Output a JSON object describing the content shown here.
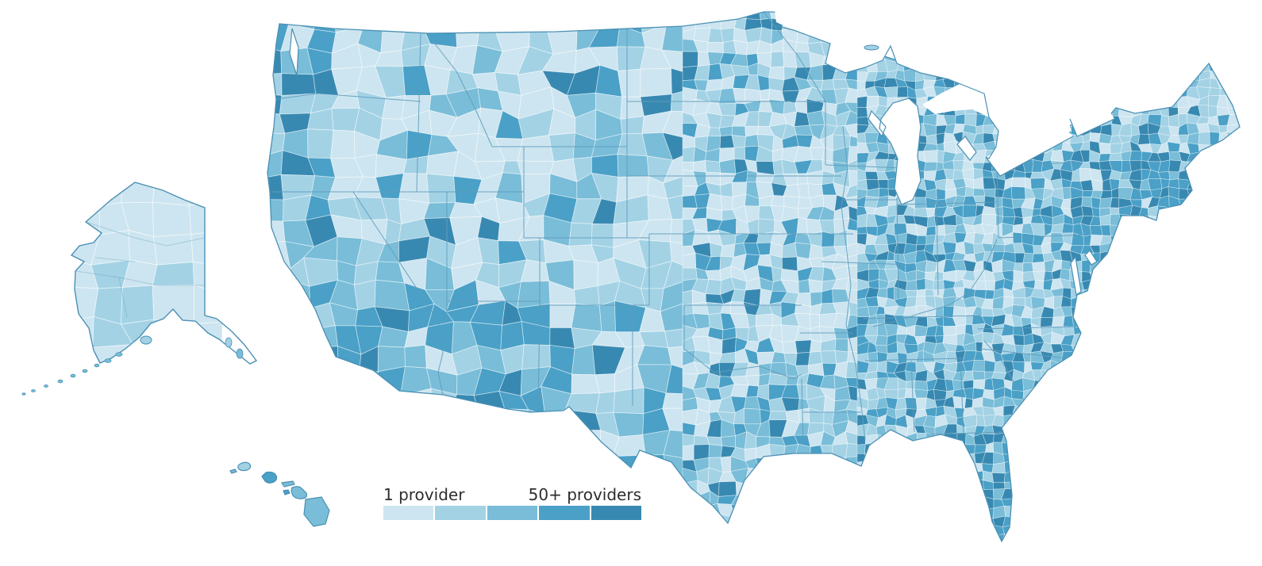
{
  "map": {
    "title": "United States county choropleth of provider counts",
    "region": "United States",
    "unit": "counties",
    "insets": [
      "Alaska",
      "Hawaii"
    ],
    "background_color": "#ffffff",
    "palette": [
      "#cde5f0",
      "#a3d2e5",
      "#79bdd8",
      "#4aa0c7",
      "#3889b1"
    ],
    "county_border_color": "rgba(255,255,255,0.55)",
    "state_border_color": "#5f9cbd",
    "coastline_color": "#4a90b4",
    "lake_color": "#ffffff",
    "classes": 5
  },
  "legend": {
    "min_label": "1 provider",
    "max_label": "50+ providers",
    "swatch_colors": [
      "#cde5f0",
      "#a3d2e5",
      "#79bdd8",
      "#4aa0c7",
      "#3889b1"
    ],
    "text_color": "#2e2e2e"
  }
}
